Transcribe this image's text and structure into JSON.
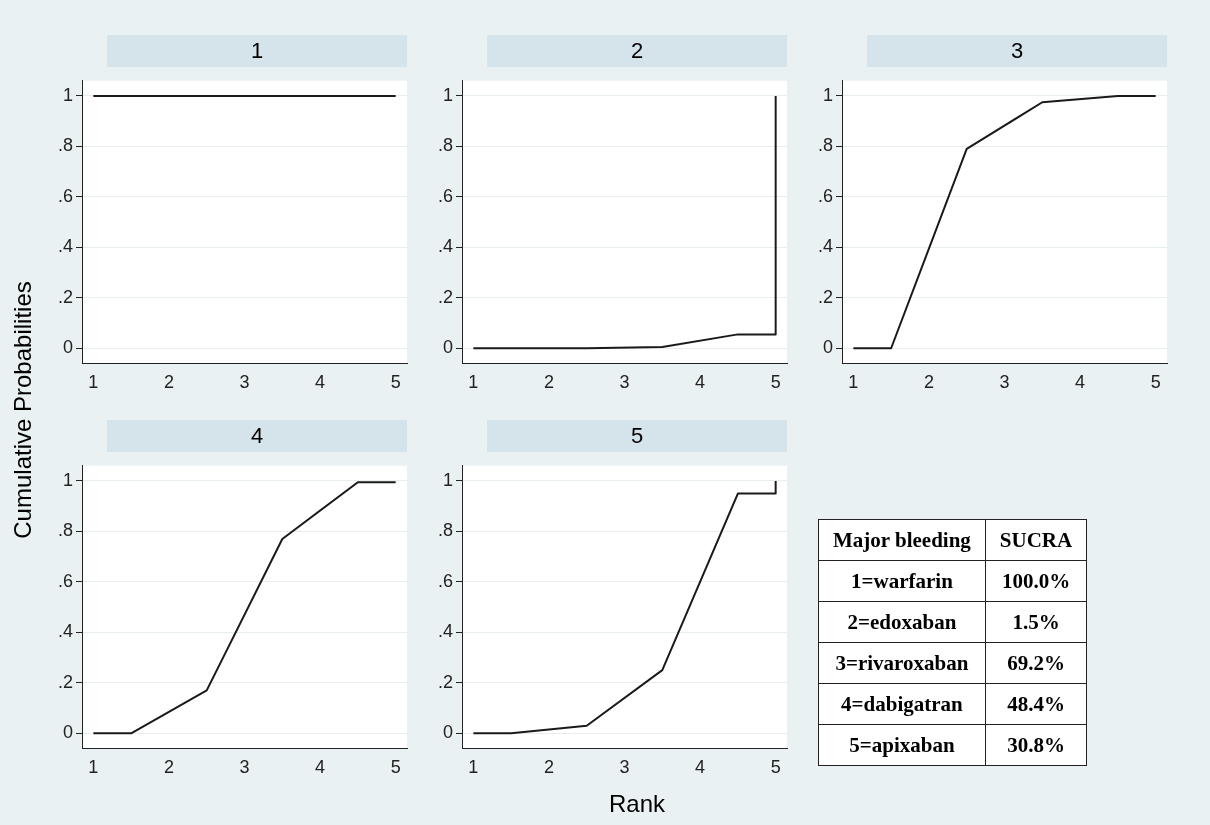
{
  "chart_data": [
    {
      "type": "line",
      "title": "1",
      "ylabel": "Cumulative Probabilities",
      "x": [
        1,
        1.5,
        2.5,
        3.5,
        4.5,
        5
      ],
      "values": [
        1,
        1,
        1,
        1,
        1,
        1
      ],
      "color": "#1a1a1a",
      "xlim": [
        0.85,
        5.15
      ],
      "xticks": [
        1,
        2,
        3,
        4,
        5
      ],
      "ylim": [
        -0.06,
        1.06
      ],
      "yticks": [
        {
          "value": 0,
          "label": "0"
        },
        {
          "value": 0.2,
          "label": ".2"
        },
        {
          "value": 0.4,
          "label": ".4"
        },
        {
          "value": 0.6,
          "label": ".6"
        },
        {
          "value": 0.8,
          "label": ".8"
        },
        {
          "value": 1,
          "label": "1"
        }
      ],
      "grid": "y",
      "marker": "none",
      "line_style": "solid"
    },
    {
      "type": "line",
      "title": "2",
      "x": [
        1,
        1.5,
        2.5,
        3.5,
        4.5,
        5,
        5
      ],
      "values": [
        0,
        0,
        0,
        0.005,
        0.055,
        0.055,
        1
      ],
      "color": "#1a1a1a",
      "xlim": [
        0.85,
        5.15
      ],
      "xticks": [
        1,
        2,
        3,
        4,
        5
      ],
      "ylim": [
        -0.06,
        1.06
      ],
      "yticks": [
        {
          "value": 0,
          "label": "0"
        },
        {
          "value": 0.2,
          "label": ".2"
        },
        {
          "value": 0.4,
          "label": ".4"
        },
        {
          "value": 0.6,
          "label": ".6"
        },
        {
          "value": 0.8,
          "label": ".8"
        },
        {
          "value": 1,
          "label": "1"
        }
      ],
      "grid": "y",
      "marker": "none",
      "line_style": "solid"
    },
    {
      "type": "line",
      "title": "3",
      "x": [
        1,
        1.5,
        2.5,
        3.5,
        4.5,
        5
      ],
      "values": [
        0,
        0,
        0.79,
        0.975,
        1,
        1
      ],
      "color": "#1a1a1a",
      "xlim": [
        0.85,
        5.15
      ],
      "xticks": [
        1,
        2,
        3,
        4,
        5
      ],
      "ylim": [
        -0.06,
        1.06
      ],
      "yticks": [
        {
          "value": 0,
          "label": "0"
        },
        {
          "value": 0.2,
          "label": ".2"
        },
        {
          "value": 0.4,
          "label": ".4"
        },
        {
          "value": 0.6,
          "label": ".6"
        },
        {
          "value": 0.8,
          "label": ".8"
        },
        {
          "value": 1,
          "label": "1"
        }
      ],
      "grid": "y",
      "marker": "none",
      "line_style": "solid"
    },
    {
      "type": "line",
      "title": "4",
      "x": [
        1,
        1.5,
        2.5,
        3.5,
        4.5,
        5
      ],
      "values": [
        0,
        0,
        0.17,
        0.77,
        0.995,
        0.995
      ],
      "color": "#1a1a1a",
      "xlim": [
        0.85,
        5.15
      ],
      "xticks": [
        1,
        2,
        3,
        4,
        5
      ],
      "ylim": [
        -0.06,
        1.06
      ],
      "yticks": [
        {
          "value": 0,
          "label": "0"
        },
        {
          "value": 0.2,
          "label": ".2"
        },
        {
          "value": 0.4,
          "label": ".4"
        },
        {
          "value": 0.6,
          "label": ".6"
        },
        {
          "value": 0.8,
          "label": ".8"
        },
        {
          "value": 1,
          "label": "1"
        }
      ],
      "grid": "y",
      "marker": "none",
      "line_style": "solid"
    },
    {
      "type": "line",
      "title": "5",
      "xlabel": "Rank",
      "x": [
        1,
        1.5,
        2.5,
        3.5,
        4.5,
        5,
        5
      ],
      "values": [
        0,
        0,
        0.03,
        0.25,
        0.95,
        0.95,
        1
      ],
      "color": "#1a1a1a",
      "xlim": [
        0.85,
        5.15
      ],
      "xticks": [
        1,
        2,
        3,
        4,
        5
      ],
      "ylim": [
        -0.06,
        1.06
      ],
      "yticks": [
        {
          "value": 0,
          "label": "0"
        },
        {
          "value": 0.2,
          "label": ".2"
        },
        {
          "value": 0.4,
          "label": ".4"
        },
        {
          "value": 0.6,
          "label": ".6"
        },
        {
          "value": 0.8,
          "label": ".8"
        },
        {
          "value": 1,
          "label": "1"
        }
      ],
      "grid": "y",
      "marker": "none",
      "line_style": "solid"
    },
    {
      "type": "other",
      "annotations": [
        "Major bleeding",
        "SUCRA"
      ],
      "categories": [
        "1=warfarin",
        "2=edoxaban",
        "3=rivaroxaban",
        "4=dabigatran",
        "5=apixaban"
      ],
      "values": [
        100.0,
        1.5,
        69.2,
        48.4,
        30.8
      ],
      "value_labels": [
        "100.0%",
        "1.5%",
        "69.2%",
        "48.4%",
        "30.8%"
      ]
    }
  ]
}
